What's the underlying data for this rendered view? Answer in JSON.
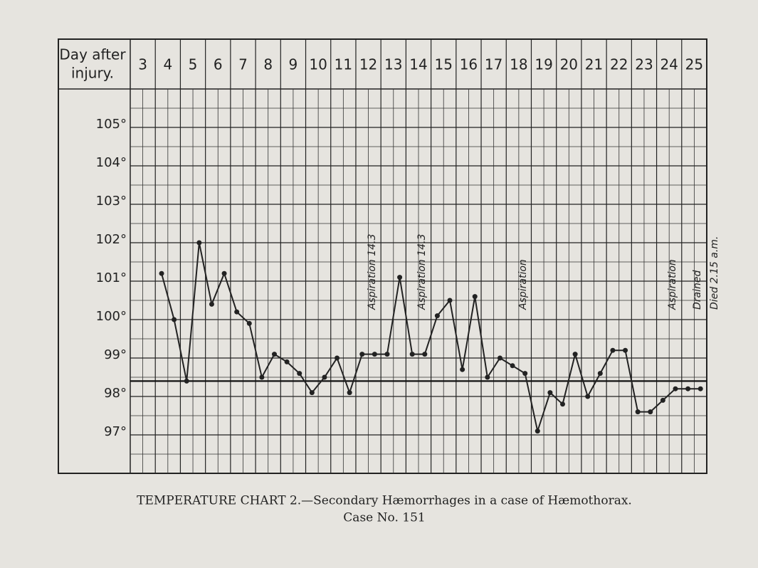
{
  "chart_data": {
    "type": "line",
    "header_label": [
      "Day after",
      "injury."
    ],
    "x": [
      3.75,
      4.25,
      4.75,
      5.25,
      5.75,
      6.25,
      6.75,
      7.25,
      7.75,
      8.25,
      8.75,
      9.25,
      9.75,
      10.25,
      10.75,
      11.25,
      11.75,
      12.25,
      12.75,
      13.25,
      13.75,
      14.25,
      14.75,
      15.25,
      15.75,
      16.25,
      16.75,
      17.25,
      17.75,
      18.25,
      18.75,
      19.25,
      19.75,
      20.25,
      20.75,
      21.25,
      21.75,
      22.25,
      22.75,
      23.25,
      23.75,
      24.25,
      24.75,
      25.25
    ],
    "series": [
      {
        "color": "#222222",
        "values": [
          101.2,
          100.0,
          98.4,
          102.0,
          100.4,
          101.2,
          100.2,
          99.9,
          98.5,
          99.1,
          98.9,
          98.6,
          98.1,
          98.5,
          99.0,
          98.1,
          99.1,
          99.1,
          99.1,
          101.1,
          99.1,
          99.1,
          100.1,
          100.5,
          98.7,
          100.6,
          98.5,
          99.0,
          98.8,
          98.6,
          97.1,
          98.1,
          97.8,
          99.1,
          98.0,
          98.6,
          99.2,
          99.2,
          97.6,
          97.6,
          97.9,
          98.2,
          98.2,
          98.2
        ]
      }
    ],
    "reference_line": 98.4,
    "xlim": [
      2.5,
      25.5
    ],
    "xticks": [
      3,
      4,
      5,
      6,
      7,
      8,
      9,
      10,
      11,
      12,
      13,
      14,
      15,
      16,
      17,
      18,
      19,
      20,
      21,
      22,
      23,
      24,
      25
    ],
    "ylim": [
      96,
      106
    ],
    "yticks": [
      {
        "value": 97,
        "label": "97°"
      },
      {
        "value": 98,
        "label": "98°"
      },
      {
        "value": 99,
        "label": "99°"
      },
      {
        "value": 100,
        "label": "100°"
      },
      {
        "value": 101,
        "label": "101°"
      },
      {
        "value": 102,
        "label": "102°"
      },
      {
        "value": 103,
        "label": "103°"
      },
      {
        "value": 104,
        "label": "104°"
      },
      {
        "value": 105,
        "label": "105°"
      }
    ],
    "annotations": [
      "Aspiration 14.3",
      "Aspiration 14.3",
      "Aspiration",
      "Aspiration",
      "Drained",
      "Died 2.15 a.m."
    ],
    "caption": [
      "TEMPERATURE CHART 2.—Secondary Hæmorrhages in a case of Hæmothorax.",
      "Case No. 151"
    ]
  }
}
